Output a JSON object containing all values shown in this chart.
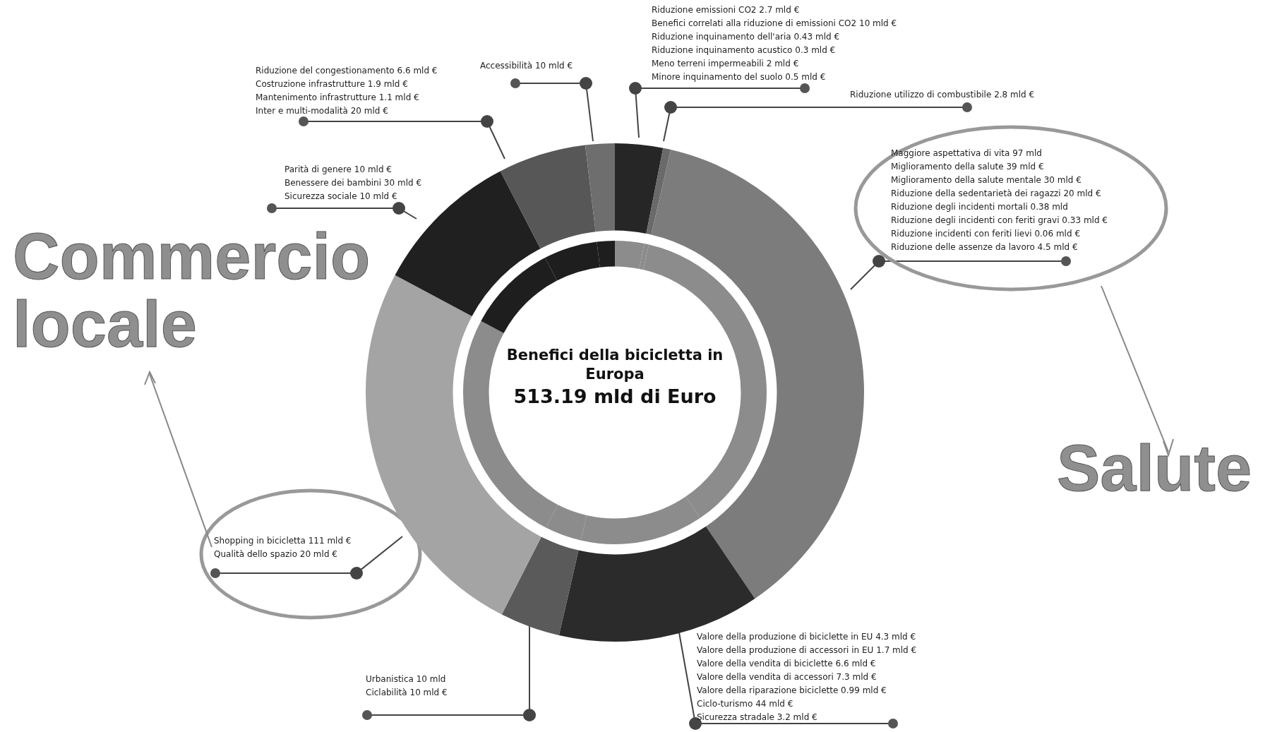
{
  "chart_data": {
    "type": "donut",
    "title": "Benefici della bicicletta in Europa",
    "subtitle": "513.19 mld di Euro",
    "categories": [
      null,
      null,
      null,
      null,
      null,
      null,
      null,
      null,
      null
    ],
    "series": [
      {
        "values": [
          3.1,
          0.5,
          36.9,
          13.1,
          3.9,
          25.3,
          9.6,
          5.7,
          1.9
        ],
        "colors": [
          "#262626",
          "#6a6a6a",
          "#7c7c7c",
          "#2b2b2b",
          "#5a5a5a",
          "#a4a4a4",
          "#202020",
          "#575757",
          "#6e6e6e"
        ]
      },
      {
        "values": [
          3.1,
          0.5,
          36.9,
          13.1,
          3.9,
          25.3,
          9.6,
          5.7,
          1.9
        ],
        "colors": [
          "#8c8c8c",
          "#8c8c8c",
          "#8c8c8c",
          "#8c8c8c",
          "#8c8c8c",
          "#8c8c8c",
          "#1e1e1e",
          "#1e1e1e",
          "#1e1e1e"
        ]
      }
    ],
    "legend": false,
    "annotations": [
      "Riduzione emissioni CO2 2.7 mld €\nBenefici correlati alla riduzione di emissioni CO2 10 mld €\nRiduzione inquinamento dell'aria 0.43 mld €\nRiduzione inquinamento acustico 0.3 mld €\nMeno terreni impermeabili 2 mld €\nMinore inquinamento del suolo 0.5 mld €",
      "Riduzione utilizzo di combustibile 2.8 mld €",
      "Maggiore aspettativa di vita 97 mld\nMiglioramento della salute 39 mld €\nMiglioramento della salute mentale 30 mld €\nRiduzione della sedentarietà dei ragazzi 20 mld €\nRiduzione degli incidenti mortali 0.38 mld\nRiduzione degli incidenti con feriti gravi 0.33 mld €\nRiduzione incidenti con feriti lievi 0.06 mld €\nRiduzione delle assenze da lavoro 4.5 mld €",
      "Valore della produzione di biciclette in EU 4.3 mld €\nValore della produzione di accessori in EU 1.7 mld €\nValore della vendita di biciclette 6.6 mld €\nValore della vendita di accessori 7.3 mld €\nValore della riparazione biciclette 0.99 mld €\nCiclo-turismo 44 mld €\nSicurezza stradale 3.2 mld €",
      "Urbanistica 10 mld\nCiclabilità 10 mld €",
      "Shopping in bicicletta 111 mld €\nQualità dello spazio 20 mld €",
      "Parità di genere 10 mld €\nBenessere dei bambini 30 mld €\nSicurezza sociale 10 mld €",
      "Riduzione del congestionamento 6.6 mld €\nCostruzione infrastrutture 1.9 mld €\nMantenimento infrastrutture 1.1 mld €\nInter e multi-modalità 20 mld €",
      "Accessibilità 10 mld €",
      "Salute",
      "Commercio locale"
    ]
  }
}
